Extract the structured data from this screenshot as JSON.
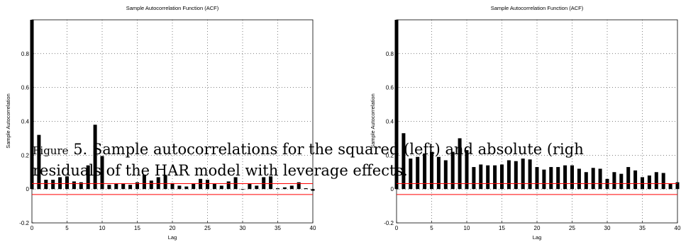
{
  "chart_data": [
    {
      "type": "bar",
      "title": "Sample Autocorrelation Function (ACF)",
      "xlabel": "Lag",
      "ylabel": "Sample Autocorrelation",
      "xlim": [
        0,
        40
      ],
      "ylim": [
        -0.2,
        1.0
      ],
      "x_ticks": [
        "0",
        "5",
        "10",
        "15",
        "20",
        "25",
        "30",
        "35",
        "40"
      ],
      "y_ticks": [
        "-0.2",
        "0",
        "0.2",
        "0.4",
        "0.6",
        "0.8"
      ],
      "grid": true,
      "confidence_bounds": [
        0.032,
        -0.032
      ],
      "x": [
        0,
        1,
        2,
        3,
        4,
        5,
        6,
        7,
        8,
        9,
        10,
        11,
        12,
        13,
        14,
        15,
        16,
        17,
        18,
        19,
        20,
        21,
        22,
        23,
        24,
        25,
        26,
        27,
        28,
        29,
        30,
        31,
        32,
        33,
        34,
        35,
        36,
        37,
        38,
        39,
        40
      ],
      "values": [
        1.0,
        0.32,
        0.055,
        0.055,
        0.07,
        0.075,
        0.045,
        0.04,
        0.14,
        0.38,
        0.195,
        0.025,
        0.03,
        0.03,
        0.025,
        0.04,
        0.085,
        0.05,
        0.07,
        0.08,
        0.035,
        0.02,
        0.015,
        0.03,
        0.06,
        0.055,
        0.03,
        0.02,
        0.045,
        0.07,
        0.0,
        0.03,
        0.02,
        0.07,
        0.075,
        0.005,
        0.01,
        0.02,
        0.04,
        0.005,
        -0.01
      ]
    },
    {
      "type": "bar",
      "title": "Sample Autocorrelation Function (ACF)",
      "xlabel": "Lag",
      "ylabel": "Sample Autocorrelation",
      "xlim": [
        0,
        40
      ],
      "ylim": [
        -0.2,
        1.0
      ],
      "x_ticks": [
        "0",
        "5",
        "10",
        "15",
        "20",
        "25",
        "30",
        "35",
        "40"
      ],
      "y_ticks": [
        "-0.2",
        "0",
        "0.2",
        "0.4",
        "0.6",
        "0.8"
      ],
      "grid": true,
      "confidence_bounds": [
        0.032,
        -0.032
      ],
      "x": [
        0,
        1,
        2,
        3,
        4,
        5,
        6,
        7,
        8,
        9,
        10,
        11,
        12,
        13,
        14,
        15,
        16,
        17,
        18,
        19,
        20,
        21,
        22,
        23,
        24,
        25,
        26,
        27,
        28,
        29,
        30,
        31,
        32,
        33,
        34,
        35,
        36,
        37,
        38,
        39,
        40
      ],
      "values": [
        1.0,
        0.33,
        0.18,
        0.19,
        0.21,
        0.22,
        0.19,
        0.17,
        0.22,
        0.3,
        0.23,
        0.13,
        0.145,
        0.14,
        0.14,
        0.145,
        0.17,
        0.165,
        0.18,
        0.175,
        0.13,
        0.115,
        0.13,
        0.13,
        0.14,
        0.14,
        0.12,
        0.1,
        0.125,
        0.12,
        0.06,
        0.1,
        0.09,
        0.13,
        0.11,
        0.07,
        0.08,
        0.1,
        0.095,
        0.03,
        0.04
      ]
    }
  ],
  "caption": {
    "line1_figure": "Figure",
    "line1_text": " 5. Sample autocorrelations for the squared (left) and absolute (righ",
    "line2_text": "residuals of the HAR model with leverage effects."
  }
}
